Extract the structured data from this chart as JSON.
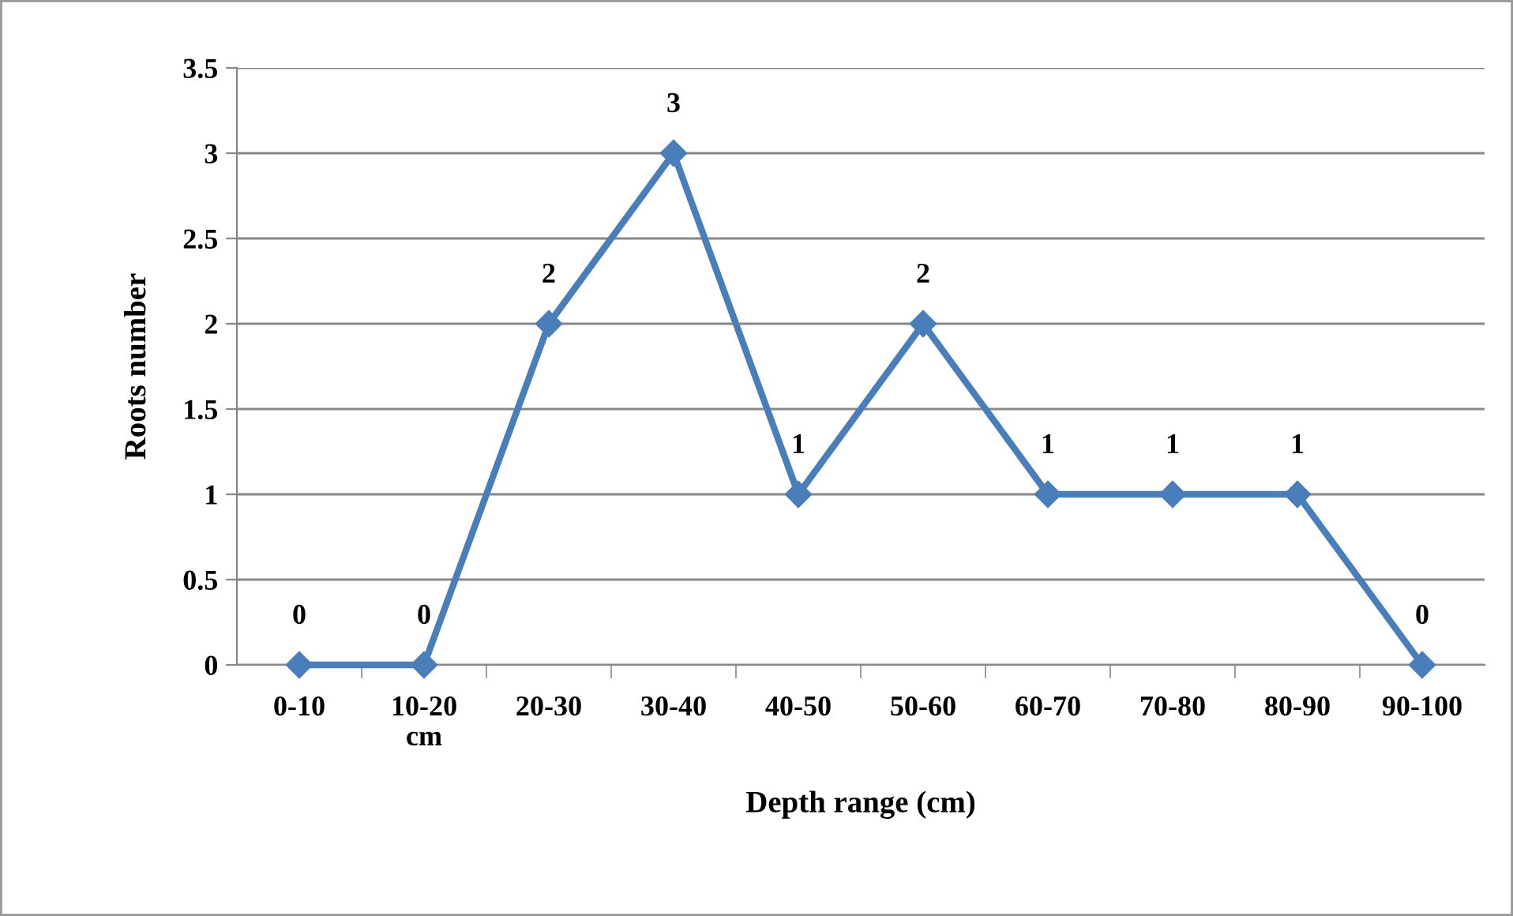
{
  "chart_data": {
    "type": "line",
    "xlabel": "Depth range (cm)",
    "ylabel": "Roots number",
    "categories": [
      "0-10",
      "10-20\ncm",
      "20-30",
      "30-40",
      "40-50",
      "50-60",
      "60-70",
      "70-80",
      "80-90",
      "90-100"
    ],
    "series": [
      {
        "color": "#4a7ebb",
        "values": [
          0,
          0,
          2,
          3,
          1,
          2,
          1,
          1,
          1,
          0
        ]
      }
    ],
    "ylim": [
      0,
      3.5
    ],
    "yticks": [
      0,
      0.5,
      1,
      1.5,
      2,
      2.5,
      3,
      3.5
    ],
    "grid": "y",
    "marker": "diamond",
    "line_style": "solid",
    "data_labels": true,
    "legend": false
  }
}
